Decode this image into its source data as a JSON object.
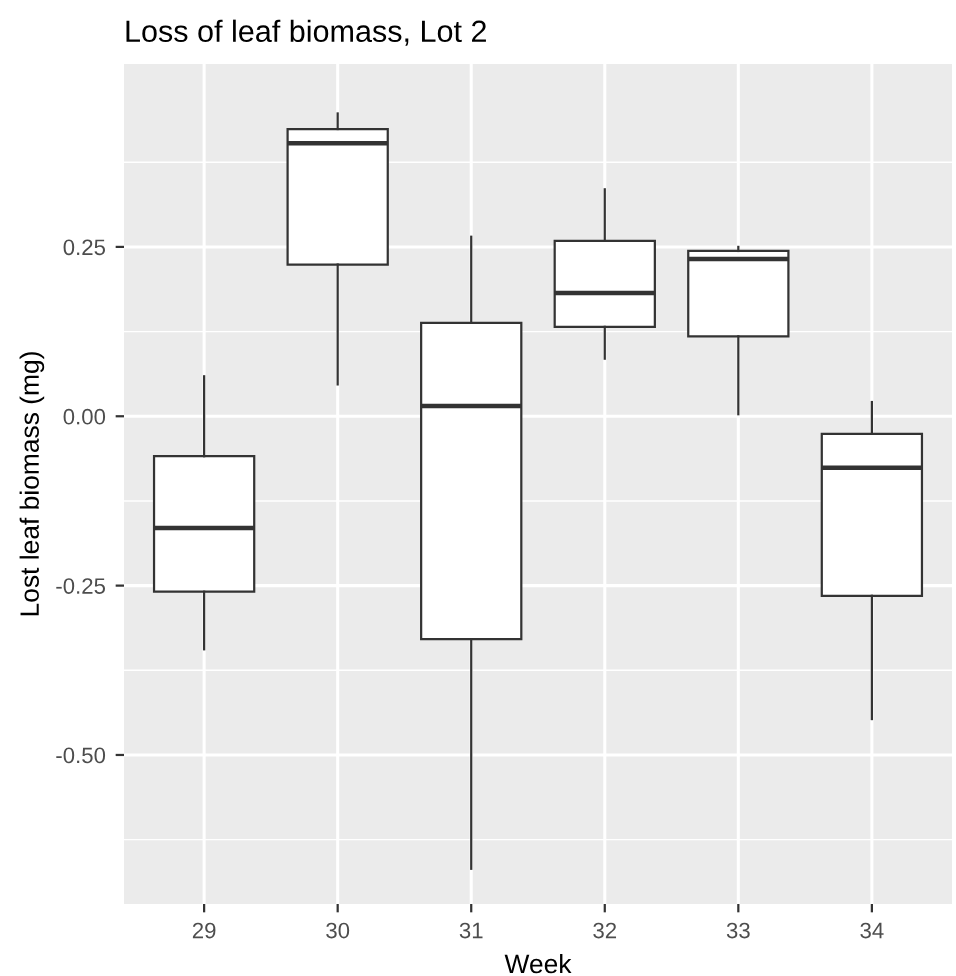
{
  "chart_data": {
    "type": "box",
    "title": "Loss of leaf biomass, Lot 2",
    "xlabel": "Week",
    "ylabel": "Lost leaf biomass (mg)",
    "categories": [
      "29",
      "30",
      "31",
      "32",
      "33",
      "34"
    ],
    "boxes": [
      {
        "low": -0.344,
        "q1": -0.259,
        "median": -0.165,
        "q3": -0.059,
        "high": 0.059
      },
      {
        "low": 0.047,
        "q1": 0.224,
        "median": 0.403,
        "q3": 0.424,
        "high": 0.447
      },
      {
        "low": -0.668,
        "q1": -0.329,
        "median": 0.015,
        "q3": 0.138,
        "high": 0.265
      },
      {
        "low": 0.085,
        "q1": 0.132,
        "median": 0.182,
        "q3": 0.259,
        "high": 0.335
      },
      {
        "low": 0.003,
        "q1": 0.118,
        "median": 0.232,
        "q3": 0.244,
        "high": 0.25
      },
      {
        "low": -0.447,
        "q1": -0.265,
        "median": -0.076,
        "q3": -0.026,
        "high": 0.021
      }
    ],
    "ylim": [
      -0.72,
      0.52
    ],
    "yticks": [
      {
        "value": -0.5,
        "label": "-0.50"
      },
      {
        "value": -0.25,
        "label": "-0.25"
      },
      {
        "value": 0,
        "label": "0.00"
      },
      {
        "value": 0.25,
        "label": "0.25"
      }
    ],
    "grid": true,
    "legend": false
  }
}
